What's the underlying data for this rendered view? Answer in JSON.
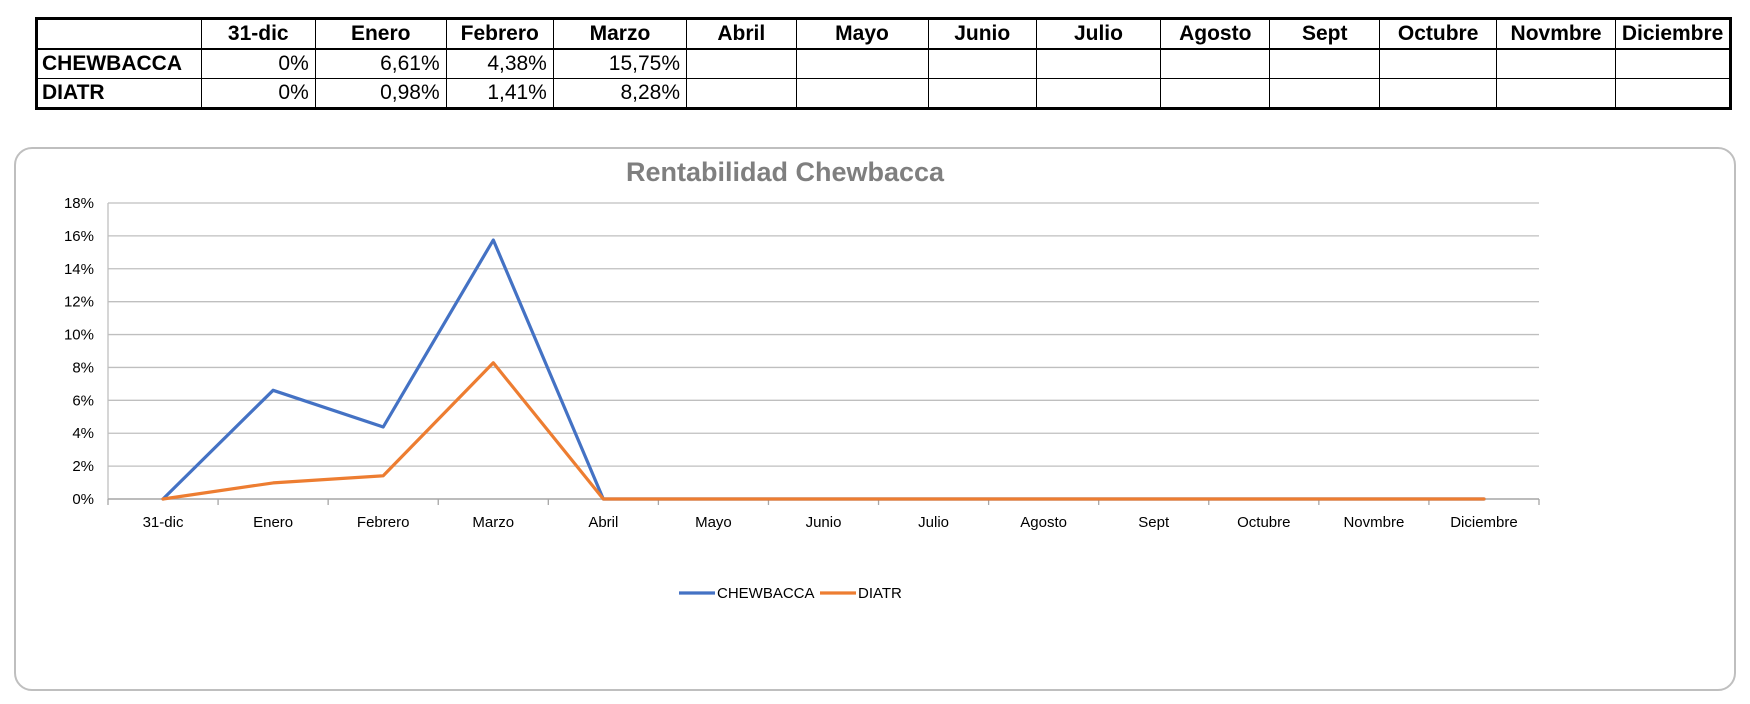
{
  "table": {
    "headers": [
      "31-dic",
      "Enero",
      "Febrero",
      "Marzo",
      "Abril",
      "Mayo",
      "Junio",
      "Julio",
      "Agosto",
      "Sept",
      "Octubre",
      "Novmbre",
      "Diciembre"
    ],
    "rows": [
      {
        "label": "CHEWBACCA",
        "cells": [
          "0%",
          "6,61%",
          "4,38%",
          "15,75%",
          "",
          "",
          "",
          "",
          "",
          "",
          "",
          "",
          ""
        ]
      },
      {
        "label": "DIATR",
        "cells": [
          "0%",
          "0,98%",
          "1,41%",
          "8,28%",
          "",
          "",
          "",
          "",
          "",
          "",
          "",
          "",
          ""
        ]
      }
    ]
  },
  "chart_data": {
    "type": "line",
    "title": "Rentabilidad Chewbacca",
    "categories": [
      "31-dic",
      "Enero",
      "Febrero",
      "Marzo",
      "Abril",
      "Mayo",
      "Junio",
      "Julio",
      "Agosto",
      "Sept",
      "Octubre",
      "Novmbre",
      "Diciembre"
    ],
    "series": [
      {
        "name": "CHEWBACCA",
        "color": "#4472c4",
        "values": [
          0,
          6.61,
          4.38,
          15.75,
          0,
          0,
          0,
          0,
          0,
          0,
          0,
          0,
          0
        ]
      },
      {
        "name": "DIATR",
        "color": "#ed7d31",
        "values": [
          0,
          0.98,
          1.41,
          8.28,
          0,
          0,
          0,
          0,
          0,
          0,
          0,
          0,
          0
        ]
      }
    ],
    "ylim": [
      0,
      18
    ],
    "yticks": [
      "0%",
      "2%",
      "4%",
      "6%",
      "8%",
      "10%",
      "12%",
      "14%",
      "16%",
      "18%"
    ],
    "ytick_values": [
      0,
      2,
      4,
      6,
      8,
      10,
      12,
      14,
      16,
      18
    ],
    "grid": true,
    "legend_position": "bottom"
  }
}
